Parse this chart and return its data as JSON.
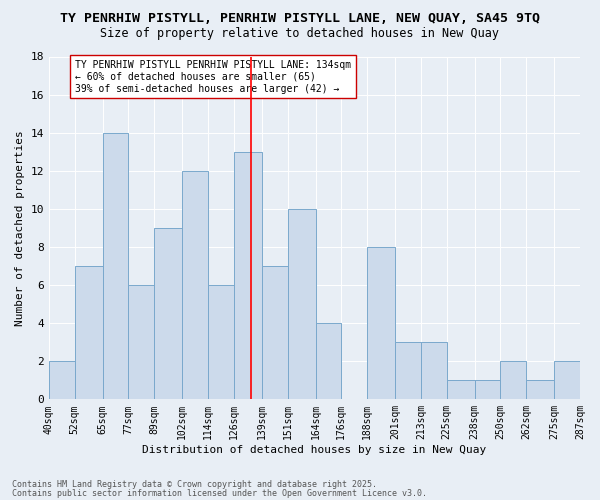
{
  "title_line1": "TY PENRHIW PISTYLL, PENRHIW PISTYLL LANE, NEW QUAY, SA45 9TQ",
  "title_line2": "Size of property relative to detached houses in New Quay",
  "xlabel": "Distribution of detached houses by size in New Quay",
  "ylabel": "Number of detached properties",
  "bins": [
    40,
    52,
    65,
    77,
    89,
    102,
    114,
    126,
    139,
    151,
    164,
    176,
    188,
    201,
    213,
    225,
    238,
    250,
    262,
    275,
    287
  ],
  "bar_heights": [
    2,
    7,
    14,
    6,
    9,
    12,
    6,
    13,
    7,
    10,
    4,
    0,
    8,
    3,
    3,
    1,
    1,
    2,
    1,
    2
  ],
  "bar_color": "#ccdaeb",
  "bar_edge_color": "#7aa8cc",
  "vline_x": 134,
  "vline_color": "red",
  "annotation_text": "TY PENRHIW PISTYLL PENRHIW PISTYLL LANE: 134sqm\n← 60% of detached houses are smaller (65)\n39% of semi-detached houses are larger (42) →",
  "annotation_box_color": "white",
  "annotation_box_edge": "#cc0000",
  "ylim": [
    0,
    18
  ],
  "yticks": [
    0,
    2,
    4,
    6,
    8,
    10,
    12,
    14,
    16,
    18
  ],
  "bg_color": "#e8eef5",
  "footer_line1": "Contains HM Land Registry data © Crown copyright and database right 2025.",
  "footer_line2": "Contains public sector information licensed under the Open Government Licence v3.0.",
  "title_fontsize": 9.5,
  "subtitle_fontsize": 8.5,
  "axis_label_fontsize": 8,
  "tick_fontsize": 7,
  "annotation_fontsize": 7,
  "footer_fontsize": 6
}
